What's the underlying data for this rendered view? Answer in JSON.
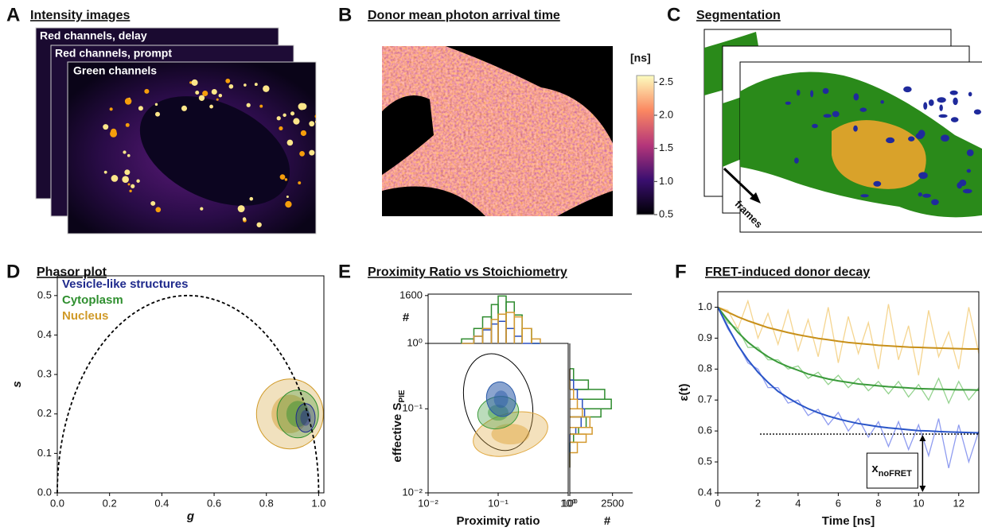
{
  "images": [
    {
      "letter": "A",
      "title": "Intensity images",
      "layers": [
        "Red channels, delay",
        "Red channels, prompt",
        "Green channels"
      ]
    },
    {
      "letter": "B",
      "title": "Donor mean photon arrival time",
      "colorbar": {
        "unit": "[ns]",
        "lim": [
          0.5,
          2.6
        ],
        "ticks": [
          0.5,
          {
            "value": 1,
            "label": "1.0"
          },
          1.5,
          {
            "value": 2,
            "label": "2.0"
          },
          2.5
        ]
      }
    },
    {
      "letter": "C",
      "title": "Segmentation",
      "arrow_label": "frames"
    }
  ],
  "chart_data": [
    {
      "type": "phasor",
      "letter": "D",
      "title": "Phasor plot",
      "xlabel": "g",
      "ylabel": "s",
      "xlim": [
        0,
        1.02
      ],
      "ylim": [
        0,
        0.55
      ],
      "xticks": [
        {
          "value": 0,
          "label": "0.0"
        },
        0.2,
        0.4,
        0.6,
        0.8,
        {
          "value": 1,
          "label": "1.0"
        }
      ],
      "yticks": [
        {
          "value": 0,
          "label": "0.0"
        },
        0.1,
        0.2,
        0.3,
        0.4,
        0.5
      ],
      "universal_circle": true,
      "legend": "upper left",
      "series": [
        {
          "name": "Vesicle-like structures",
          "color": "#1f2a8c",
          "x": [
            0.95
          ],
          "values": [
            0.19
          ]
        },
        {
          "name": "Cytoplasm",
          "color": "#2f8f2f",
          "x": [
            0.92
          ],
          "values": [
            0.2
          ]
        },
        {
          "name": "Nucleus",
          "color": "#d09a28",
          "x": [
            0.89
          ],
          "values": [
            0.2
          ]
        }
      ]
    },
    {
      "type": "prs",
      "letter": "E",
      "title": "Proximity Ratio vs Stoichiometry",
      "xlabel": "Proximity ratio",
      "ylabel": "effective S",
      "ylabel_sub": "PIE",
      "log": true,
      "xlim": [
        0.01,
        1
      ],
      "ylim": [
        0.01,
        0.6
      ],
      "xticks": [
        {
          "value": 0.01,
          "label": "10⁻²"
        },
        {
          "value": 0.1,
          "label": "10⁻¹"
        },
        {
          "value": 1,
          "label": "10⁰"
        }
      ],
      "yticks": [
        {
          "value": 0.01,
          "label": "10⁻²"
        },
        {
          "value": 0.1,
          "label": "10⁻¹"
        }
      ],
      "series": [
        {
          "color": "#000000",
          "x": [
            0.1
          ],
          "values": [
            0.12
          ]
        },
        {
          "color": "#2a5aa8",
          "x": [
            0.11
          ],
          "values": [
            0.13
          ]
        },
        {
          "color": "#3c9a3c",
          "x": [
            0.1
          ],
          "values": [
            0.09
          ]
        },
        {
          "color": "#e0a840",
          "x": [
            0.15
          ],
          "values": [
            0.05
          ]
        }
      ],
      "hist_top": {
        "ylabel": "#",
        "ylim": [
          1,
          2000
        ],
        "yticks": [
          {
            "value": 1,
            "label": "10⁰"
          },
          1600
        ],
        "bins": [
          0.03,
          0.045,
          0.06,
          0.08,
          0.1,
          0.13,
          0.17,
          0.22,
          0.3,
          0.4
        ],
        "series": [
          {
            "color": "#2e8b2e",
            "values": [
              2,
              10,
              60,
              400,
              1500,
              600,
              80,
              10,
              1
            ]
          },
          {
            "color": "#2a4fc0",
            "values": [
              1,
              3,
              8,
              20,
              30,
              10,
              3,
              1,
              1
            ]
          },
          {
            "color": "#d49a30",
            "values": [
              1,
              3,
              10,
              40,
              90,
              120,
              60,
              10,
              2
            ]
          }
        ]
      },
      "hist_right": {
        "xlabel": "#",
        "xlim": [
          1,
          100000
        ],
        "xticks": [
          {
            "value": 1,
            "label": "10⁰"
          },
          2500
        ],
        "bins": [
          0.02,
          0.03,
          0.04,
          0.05,
          0.06,
          0.08,
          0.1,
          0.13,
          0.17,
          0.22,
          0.3
        ],
        "series": [
          {
            "color": "#2e8b2e",
            "values": [
              1,
              1,
              2,
              5,
              20,
              300,
              2000,
              600,
              30,
              2
            ]
          },
          {
            "color": "#2a4fc0",
            "values": [
              1,
              1,
              1,
              3,
              8,
              15,
              10,
              4,
              2,
              1
            ]
          },
          {
            "color": "#d49a30",
            "values": [
              1,
              4,
              20,
              60,
              40,
              10,
              4,
              2,
              1,
              1
            ]
          }
        ]
      }
    },
    {
      "type": "line",
      "letter": "F",
      "title": "FRET-induced donor decay",
      "xlabel": "Time [ns]",
      "ylabel": "ε(t)",
      "xlim": [
        0,
        13
      ],
      "ylim": [
        0.4,
        1.05
      ],
      "xticks": [
        0,
        2,
        4,
        6,
        8,
        10,
        12
      ],
      "yticks": [
        0.4,
        0.5,
        0.6,
        0.7,
        0.8,
        0.9,
        {
          "value": 1,
          "label": "1.0"
        }
      ],
      "x": [
        0,
        0.5,
        1,
        1.5,
        2,
        2.5,
        3,
        3.5,
        4,
        4.5,
        5,
        5.5,
        6,
        6.5,
        7,
        7.5,
        8,
        8.5,
        9,
        9.5,
        10,
        10.5,
        11,
        11.5,
        12,
        12.5,
        13
      ],
      "series": [
        {
          "color": "#f5d590",
          "values": [
            1.0,
            0.99,
            0.93,
            1.02,
            0.9,
            0.98,
            0.88,
            0.99,
            0.86,
            0.96,
            0.84,
            1.0,
            0.82,
            0.97,
            0.85,
            0.95,
            0.8,
            1.01,
            0.83,
            0.94,
            0.78,
            0.99,
            0.84,
            0.92,
            0.8,
            1.0,
            0.85
          ]
        },
        {
          "color": "#95d38f",
          "values": [
            1.0,
            0.95,
            0.93,
            0.87,
            0.87,
            0.83,
            0.83,
            0.8,
            0.81,
            0.77,
            0.79,
            0.75,
            0.78,
            0.74,
            0.77,
            0.73,
            0.76,
            0.72,
            0.76,
            0.71,
            0.75,
            0.7,
            0.77,
            0.69,
            0.76,
            0.7,
            0.74
          ]
        },
        {
          "color": "#8f9cf0",
          "values": [
            1.0,
            0.93,
            0.88,
            0.82,
            0.8,
            0.74,
            0.74,
            0.69,
            0.7,
            0.65,
            0.67,
            0.62,
            0.66,
            0.6,
            0.64,
            0.58,
            0.63,
            0.55,
            0.63,
            0.54,
            0.62,
            0.52,
            0.64,
            0.48,
            0.62,
            0.5,
            0.6
          ]
        }
      ],
      "fits": [
        {
          "color": "#c8901a",
          "values": [
            1.0,
            0.984,
            0.969,
            0.956,
            0.945,
            0.934,
            0.926,
            0.918,
            0.911,
            0.905,
            0.899,
            0.895,
            0.89,
            0.886,
            0.883,
            0.88,
            0.877,
            0.875,
            0.873,
            0.871,
            0.87,
            0.869,
            0.868,
            0.867,
            0.866,
            0.865,
            0.865
          ]
        },
        {
          "color": "#3a9a3a",
          "values": [
            1.0,
            0.958,
            0.919,
            0.887,
            0.862,
            0.84,
            0.822,
            0.808,
            0.796,
            0.784,
            0.776,
            0.768,
            0.762,
            0.757,
            0.752,
            0.749,
            0.746,
            0.743,
            0.741,
            0.739,
            0.737,
            0.736,
            0.735,
            0.734,
            0.733,
            0.733,
            0.732
          ]
        },
        {
          "color": "#2a55c8",
          "values": [
            1.0,
            0.936,
            0.877,
            0.83,
            0.79,
            0.757,
            0.728,
            0.707,
            0.688,
            0.672,
            0.659,
            0.648,
            0.639,
            0.631,
            0.624,
            0.619,
            0.614,
            0.61,
            0.607,
            0.604,
            0.601,
            0.6,
            0.598,
            0.597,
            0.596,
            0.595,
            0.594
          ]
        }
      ],
      "annotation": {
        "text": "x",
        "sub": "noFRET",
        "level": 0.59,
        "from": 2.1,
        "at": 10.2
      }
    }
  ]
}
